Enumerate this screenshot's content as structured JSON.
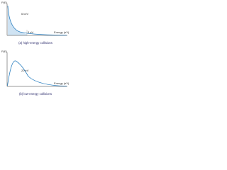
{
  "panels": [
    {
      "y_label": "P(E)",
      "curve_label": "6 keV",
      "marker_label": "3 eV",
      "x_label": "Energy (eV)",
      "caption": "(a) high-energy collisions"
    },
    {
      "y_label": "P(E)",
      "curve_label": "20 eV",
      "x_label": "Energy (eV)",
      "caption": "(b) low-energy collisions"
    }
  ]
}
